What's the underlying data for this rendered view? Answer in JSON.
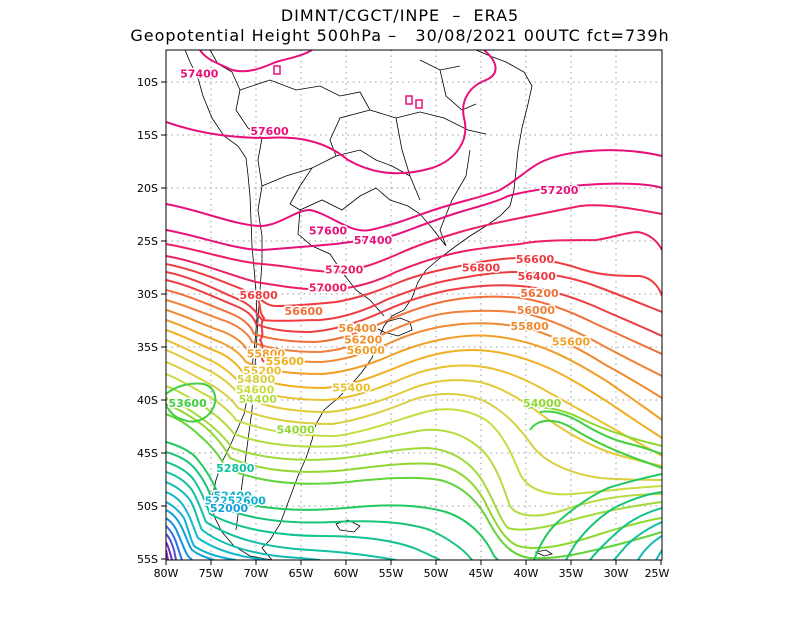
{
  "header": {
    "line1": "DIMNT/CGCT/INPE  –  ERA5",
    "line2": "Geopotential Height 500hPa –   30/08/2021 00UTC fct=739h"
  },
  "axes": {
    "lat_labels": [
      "10S",
      "15S",
      "20S",
      "25S",
      "30S",
      "35S",
      "40S",
      "45S",
      "50S",
      "55S"
    ],
    "lon_labels": [
      "80W",
      "75W",
      "70W",
      "65W",
      "60W",
      "55W",
      "50W",
      "45W",
      "40W",
      "35W",
      "30W",
      "25W"
    ],
    "lon_range_deg": [
      -80,
      -25
    ],
    "lat_range_deg": [
      -55,
      -7.5
    ]
  },
  "contour_labels": [
    {
      "text": "57400",
      "color": "#e8107a",
      "lon": -76.3,
      "lat": -9.2
    },
    {
      "text": "57600",
      "color": "#e8107a",
      "lon": -68.5,
      "lat": -14.6
    },
    {
      "text": "57200",
      "color": "#e8107a",
      "lon": -36.3,
      "lat": -20.2
    },
    {
      "text": "57600",
      "color": "#e8107a",
      "lon": -62.0,
      "lat": -24.0
    },
    {
      "text": "57400",
      "color": "#e8107a",
      "lon": -57.0,
      "lat": -24.9
    },
    {
      "text": "57200",
      "color": "#ec1f60",
      "lon": -60.2,
      "lat": -27.7
    },
    {
      "text": "56800",
      "color": "#ef3c40",
      "lon": -45.0,
      "lat": -27.5
    },
    {
      "text": "57000",
      "color": "#ec1f60",
      "lon": -62.0,
      "lat": -29.4
    },
    {
      "text": "56600",
      "color": "#ef3c40",
      "lon": -39.0,
      "lat": -26.7
    },
    {
      "text": "56400",
      "color": "#ef3c40",
      "lon": -38.8,
      "lat": -28.3
    },
    {
      "text": "56800",
      "color": "#ef3c40",
      "lon": -69.7,
      "lat": -30.1
    },
    {
      "text": "56200",
      "color": "#f0703a",
      "lon": -38.5,
      "lat": -29.9
    },
    {
      "text": "56600",
      "color": "#f0703a",
      "lon": -64.7,
      "lat": -31.6
    },
    {
      "text": "56000",
      "color": "#f0803a",
      "lon": -38.9,
      "lat": -31.5
    },
    {
      "text": "55800",
      "color": "#f08a30",
      "lon": -39.6,
      "lat": -33.0
    },
    {
      "text": "56400",
      "color": "#f08a30",
      "lon": -58.7,
      "lat": -33.2
    },
    {
      "text": "56200",
      "color": "#f0902c",
      "lon": -58.1,
      "lat": -34.3
    },
    {
      "text": "56000",
      "color": "#f0a028",
      "lon": -57.8,
      "lat": -35.3
    },
    {
      "text": "55600",
      "color": "#f0a028",
      "lon": -35.0,
      "lat": -34.5
    },
    {
      "text": "55800",
      "color": "#f0a028",
      "lon": -68.9,
      "lat": -35.6
    },
    {
      "text": "55600",
      "color": "#f0b020",
      "lon": -66.8,
      "lat": -36.3
    },
    {
      "text": "55200",
      "color": "#e8c030",
      "lon": -69.3,
      "lat": -37.2
    },
    {
      "text": "55400",
      "color": "#e8c030",
      "lon": -59.4,
      "lat": -38.8
    },
    {
      "text": "54800",
      "color": "#d8d040",
      "lon": -70.0,
      "lat": -38.0
    },
    {
      "text": "54600",
      "color": "#c8dc40",
      "lon": -70.1,
      "lat": -39.0
    },
    {
      "text": "54400",
      "color": "#b4dc40",
      "lon": -69.8,
      "lat": -39.9
    },
    {
      "text": "54000",
      "color": "#90d830",
      "lon": -38.2,
      "lat": -40.3
    },
    {
      "text": "53600",
      "color": "#40d040",
      "lon": -77.6,
      "lat": -40.3
    },
    {
      "text": "54000",
      "color": "#90d830",
      "lon": -65.6,
      "lat": -42.8
    },
    {
      "text": "52800",
      "color": "#10c0a0",
      "lon": -72.3,
      "lat": -46.4
    },
    {
      "text": "52400",
      "color": "#10b8c8",
      "lon": -72.6,
      "lat": -49.0
    },
    {
      "text": "52252600",
      "color": "#10b0d0",
      "lon": -72.3,
      "lat": -49.5
    },
    {
      "text": "52000",
      "color": "#10a0d8",
      "lon": -73.0,
      "lat": -50.2
    }
  ]
}
